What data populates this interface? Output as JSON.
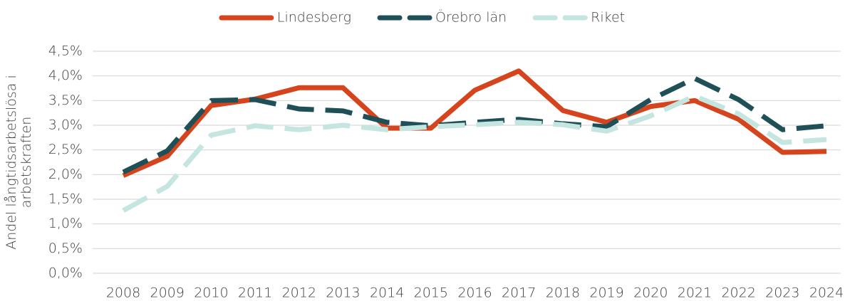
{
  "chart_data": {
    "type": "line",
    "ylabel": [
      "Andel långtidsarbetslösa i",
      "arbetskraften"
    ],
    "categories": [
      "2008",
      "2009",
      "2010",
      "2011",
      "2012",
      "2013",
      "2014",
      "2015",
      "2016",
      "2017",
      "2018",
      "2019",
      "2020",
      "2021",
      "2022",
      "2023",
      "2024"
    ],
    "series": [
      {
        "name": "Lindesberg",
        "color": "#d5441c",
        "dash": false,
        "values": [
          1.98,
          2.37,
          3.4,
          3.53,
          3.76,
          3.76,
          2.94,
          2.94,
          3.71,
          4.1,
          3.3,
          3.06,
          3.38,
          3.5,
          3.12,
          2.45,
          2.47
        ]
      },
      {
        "name": "Örebro län",
        "color": "#1f5058",
        "dash": true,
        "values": [
          2.05,
          2.48,
          3.5,
          3.52,
          3.33,
          3.29,
          3.06,
          2.99,
          3.06,
          3.12,
          3.03,
          2.97,
          3.52,
          3.95,
          3.52,
          2.91,
          2.99
        ]
      },
      {
        "name": "Riket",
        "color": "#c5e5e0",
        "dash": true,
        "values": [
          1.27,
          1.76,
          2.8,
          2.99,
          2.91,
          3.0,
          2.91,
          2.97,
          3.01,
          3.06,
          3.01,
          2.88,
          3.19,
          3.59,
          3.23,
          2.65,
          2.71
        ]
      }
    ],
    "ylim": [
      0,
      4.5
    ],
    "yticks": [
      {
        "value": 0,
        "label": "0,0%"
      },
      {
        "value": 0.5,
        "label": "0,5%"
      },
      {
        "value": 1,
        "label": "1,0%"
      },
      {
        "value": 1.5,
        "label": "1,5%"
      },
      {
        "value": 2,
        "label": "2,0%"
      },
      {
        "value": 2.5,
        "label": "2,5%"
      },
      {
        "value": 3,
        "label": "3,0%"
      },
      {
        "value": 3.5,
        "label": "3,5%"
      },
      {
        "value": 4,
        "label": "4,0%"
      },
      {
        "value": 4.5,
        "label": "4,5%"
      }
    ],
    "grid": true,
    "legend": "top"
  }
}
